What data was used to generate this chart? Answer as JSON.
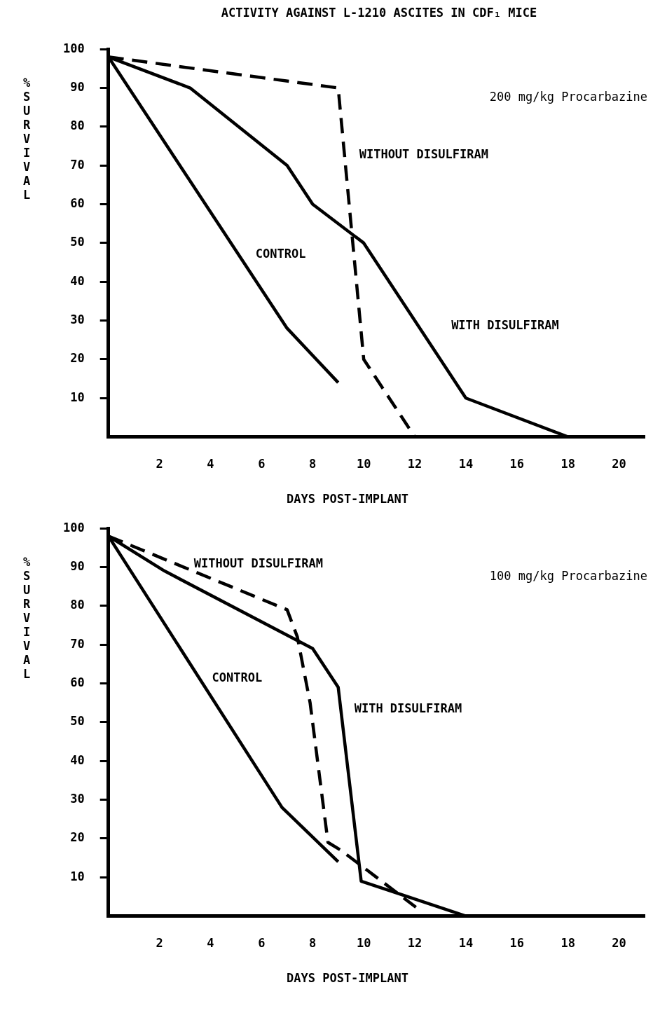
{
  "chart_data": [
    {
      "type": "line",
      "title": "ACTIVITY AGAINST L-1210 ASCITES IN CDF₁ MICE",
      "xlabel": "DAYS POST-IMPLANT",
      "ylabel": "% SURVIVAL",
      "annotations": [
        "200 mg/kg Procarbazine"
      ],
      "xlim": [
        0,
        21
      ],
      "xticks": [
        2,
        4,
        6,
        8,
        10,
        12,
        14,
        16,
        18,
        20
      ],
      "ylim": [
        0,
        100
      ],
      "yticks": [
        10,
        20,
        30,
        40,
        50,
        60,
        70,
        80,
        90,
        100
      ],
      "marker": "none",
      "series": [
        {
          "name": "CONTROL",
          "color": "#000000",
          "line_style": "solid",
          "x": [
            0,
            7,
            9
          ],
          "values": [
            98,
            28,
            14
          ]
        },
        {
          "name": "WITH DISULFIRAM",
          "color": "#000000",
          "line_style": "solid",
          "x": [
            0,
            3.2,
            7,
            8,
            10,
            14,
            18
          ],
          "values": [
            98,
            90,
            70,
            60,
            50,
            10,
            0
          ]
        },
        {
          "name": "WITHOUT DISULFIRAM",
          "color": "#000000",
          "line_style": "dashed",
          "x": [
            0,
            9,
            10,
            12
          ],
          "values": [
            98,
            90,
            20,
            0
          ]
        }
      ]
    },
    {
      "type": "line",
      "xlabel": "DAYS POST-IMPLANT",
      "ylabel": "% SURVIVAL",
      "annotations": [
        "100 mg/kg Procarbazine"
      ],
      "xlim": [
        0,
        21
      ],
      "xticks": [
        2,
        4,
        6,
        8,
        10,
        12,
        14,
        16,
        18,
        20
      ],
      "ylim": [
        0,
        100
      ],
      "yticks": [
        10,
        20,
        30,
        40,
        50,
        60,
        70,
        80,
        90,
        100
      ],
      "marker": "none",
      "series": [
        {
          "name": "CONTROL",
          "color": "#000000",
          "line_style": "solid",
          "x": [
            0,
            6.8,
            9
          ],
          "values": [
            98,
            28,
            14
          ]
        },
        {
          "name": "WITH DISULFIRAM",
          "color": "#000000",
          "line_style": "solid",
          "x": [
            0,
            2.2,
            8,
            9,
            9.9,
            14
          ],
          "values": [
            98,
            89,
            69,
            59,
            9,
            0
          ]
        },
        {
          "name": "WITHOUT DISULFIRAM",
          "color": "#000000",
          "line_style": "dashed",
          "x": [
            0,
            7,
            7.4,
            7.9,
            8.6,
            9.1,
            12.3
          ],
          "values": [
            98,
            79,
            72,
            55,
            19,
            17,
            1
          ]
        }
      ]
    }
  ]
}
